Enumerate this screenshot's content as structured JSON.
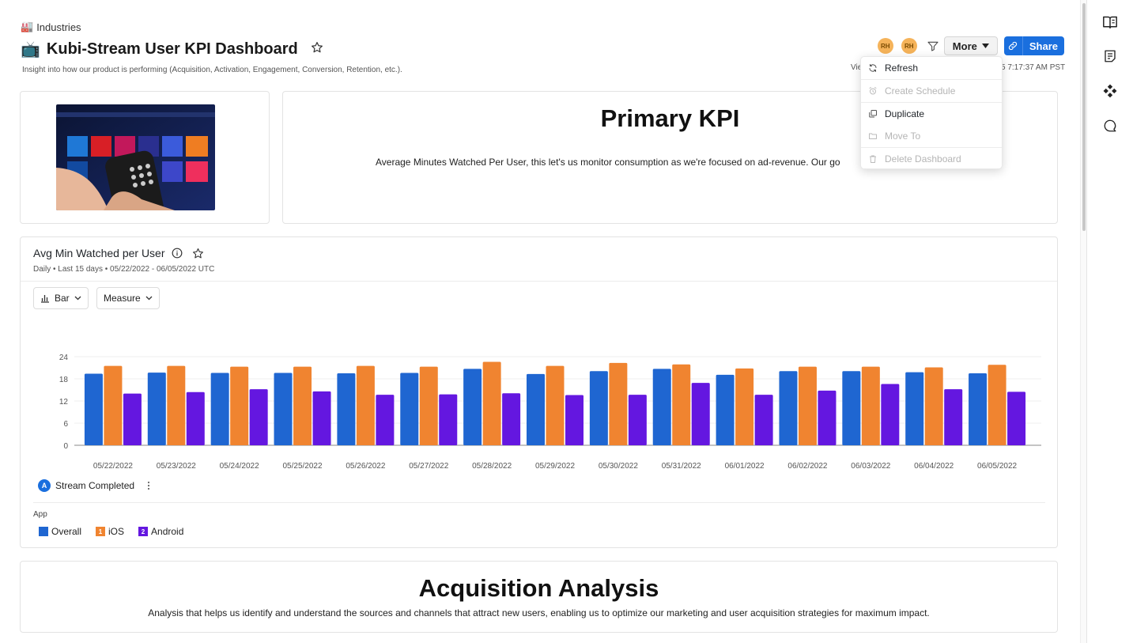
{
  "breadcrumb": {
    "icon": "🏭",
    "label": "Industries"
  },
  "dashboard": {
    "icon": "📺",
    "title": "Kubi-Stream User KPI Dashboard",
    "subtitle": "Insight into how our product is performing (Acquisition, Activation, Engagement, Conversion, Retention, etc.)."
  },
  "header": {
    "avatars": [
      "RH",
      "RH"
    ],
    "more_label": "More",
    "share_label": "Share",
    "timestamp_left": "Vie",
    "timestamp_right": "5 7:17:37 AM PST"
  },
  "menu": {
    "items": [
      {
        "label": "Refresh",
        "icon": "refresh-icon",
        "enabled": true
      },
      {
        "label": "Create Schedule",
        "icon": "alarm-clock-icon",
        "enabled": false
      },
      {
        "label": "Duplicate",
        "icon": "duplicate-icon",
        "enabled": true
      },
      {
        "label": "Move To",
        "icon": "folder-icon",
        "enabled": false
      },
      {
        "label": "Delete Dashboard",
        "icon": "trash-icon",
        "enabled": false
      }
    ]
  },
  "primary_kpi": {
    "title": "Primary KPI",
    "description": "Average Minutes Watched Per User, this let's us monitor consumption as we're focused on ad-revenue. Our go"
  },
  "chart_card": {
    "title": "Avg Min Watched per User",
    "meta": "Daily • Last 15 days • 05/22/2022 - 06/05/2022 UTC",
    "chart_type_label": "Bar",
    "measure_label": "Measure",
    "metric_badge": "A",
    "metric_label": "Stream Completed",
    "legend_title": "App"
  },
  "chart_data": {
    "type": "bar",
    "title": "Avg Min Watched per User",
    "xlabel": "",
    "ylabel": "",
    "ylim": [
      0,
      24
    ],
    "yticks": [
      0,
      6,
      12,
      18,
      24
    ],
    "grid": true,
    "categories": [
      "05/22/2022",
      "05/23/2022",
      "05/24/2022",
      "05/25/2022",
      "05/26/2022",
      "05/27/2022",
      "05/28/2022",
      "05/29/2022",
      "05/30/2022",
      "05/31/2022",
      "06/01/2022",
      "06/02/2022",
      "06/03/2022",
      "06/04/2022",
      "06/05/2022"
    ],
    "series": [
      {
        "name": "Overall",
        "badge": "",
        "color": "#1f66d1",
        "values": [
          19.4,
          19.7,
          19.6,
          19.6,
          19.5,
          19.6,
          20.7,
          19.3,
          20.1,
          20.7,
          19.1,
          20.1,
          20.1,
          19.8,
          19.5
        ]
      },
      {
        "name": "iOS",
        "badge": "1",
        "color": "#f08430",
        "values": [
          21.5,
          21.5,
          21.3,
          21.3,
          21.5,
          21.3,
          22.6,
          21.5,
          22.3,
          21.9,
          20.8,
          21.3,
          21.3,
          21.1,
          21.8
        ]
      },
      {
        "name": "Android",
        "badge": "2",
        "color": "#6417e0",
        "values": [
          14.0,
          14.4,
          15.2,
          14.6,
          13.7,
          13.8,
          14.1,
          13.6,
          13.7,
          16.9,
          13.7,
          14.8,
          16.6,
          15.2,
          14.5
        ]
      }
    ]
  },
  "acquisition": {
    "title": "Acquisition Analysis",
    "description": "Analysis that helps us identify and understand the sources and channels that attract new users, enabling us to optimize our marketing and user acquisition strategies for maximum impact."
  }
}
